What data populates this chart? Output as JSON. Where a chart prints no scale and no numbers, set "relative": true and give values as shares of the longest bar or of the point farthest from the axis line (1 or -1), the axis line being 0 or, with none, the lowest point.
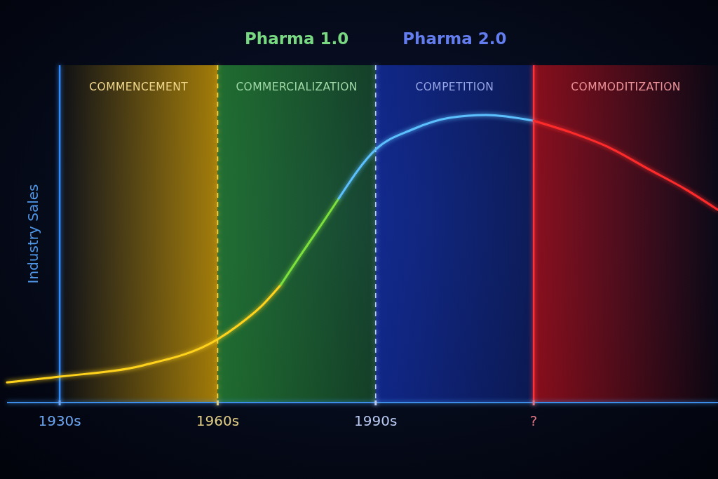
{
  "chart_data": {
    "type": "line",
    "relative": true,
    "ylabel": "Industry Sales",
    "xlim": [
      1920,
      2055
    ],
    "xticks": [
      {
        "value": 1930,
        "label": "1930s"
      },
      {
        "value": 1960,
        "label": "1960s"
      },
      {
        "value": 1990,
        "label": "1990s"
      },
      {
        "value": 2020,
        "label": "?"
      }
    ],
    "series": [
      {
        "color": "#ffd21a",
        "x": [
          1920,
          1930,
          1946,
          1960,
          1964,
          1968,
          1972
        ],
        "values": [
          0.07,
          0.09,
          0.13,
          0.22,
          0.27,
          0.33,
          0.41
        ]
      },
      {
        "color": "#7be03c",
        "x": [
          1972,
          1976,
          1979,
          1983
        ],
        "values": [
          0.41,
          0.52,
          0.6,
          0.71
        ]
      },
      {
        "color": "#5cc0ff",
        "x": [
          1983,
          1990,
          1997,
          2004,
          2011,
          2020
        ],
        "values": [
          0.71,
          0.88,
          0.95,
          0.99,
          1,
          0.98
        ]
      },
      {
        "color": "#ff2b2b",
        "x": [
          2020,
          2027,
          2034,
          2042,
          2049,
          2055
        ],
        "values": [
          0.98,
          0.94,
          0.89,
          0.81,
          0.74,
          0.67
        ]
      }
    ],
    "bands": [
      {
        "axis": "x",
        "from": 1930,
        "to": 1960,
        "label": "COMMENCEMENT",
        "color": "#e0a800"
      },
      {
        "axis": "x",
        "from": 1960,
        "to": 1990,
        "label": "COMMERCIALIZATION",
        "color": "#2fa83c"
      },
      {
        "axis": "x",
        "from": 1990,
        "to": 2020,
        "label": "COMPETITION",
        "color": "#1637c8"
      },
      {
        "axis": "x",
        "from": 2020,
        "to": 2055,
        "label": "COMMODITIZATION",
        "color": "#d8101c"
      }
    ],
    "ref_lines": [
      {
        "axis": "x",
        "value": 1930,
        "color": "#2f8cff",
        "line_style": "solid"
      },
      {
        "axis": "x",
        "value": 1960,
        "color": "#ffd23a",
        "line_style": "dashed"
      },
      {
        "axis": "x",
        "value": 1990,
        "color": "#b8ccff",
        "line_style": "dashed"
      },
      {
        "axis": "x",
        "value": 2020,
        "color": "#ff3038",
        "line_style": "solid"
      }
    ],
    "annotations": [
      "Pharma 1.0",
      "Pharma 2.0"
    ]
  }
}
